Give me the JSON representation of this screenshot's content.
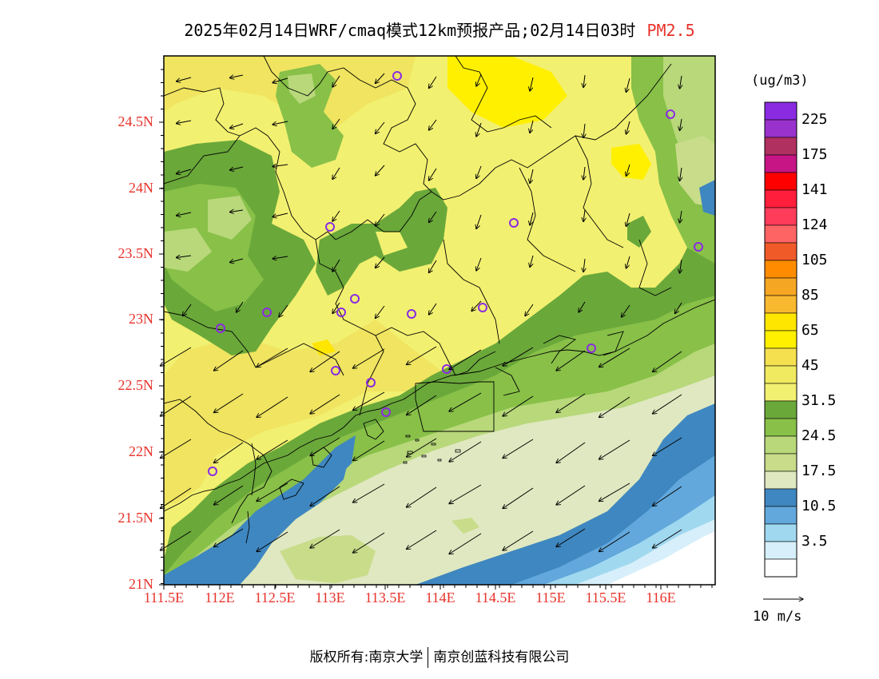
{
  "header": {
    "title": "2025年02月14日WRF/cmaq模式12km预报产品;02月14日03时",
    "product": "PM2.5"
  },
  "axes": {
    "lat_labels": [
      "24.5N",
      "24N",
      "23.5N",
      "23N",
      "22.5N",
      "22N",
      "21.5N",
      "21N"
    ],
    "lon_labels": [
      "111.5E",
      "112E",
      "112.5E",
      "113E",
      "113.5E",
      "114E",
      "114.5E",
      "115E",
      "115.5E",
      "116E"
    ]
  },
  "legend": {
    "unit": "(ug/m3)",
    "bins": [
      {
        "color": "#8a2be2"
      },
      {
        "color": "#9932cc"
      },
      {
        "color": "#b03060"
      },
      {
        "color": "#c71585"
      },
      {
        "color": "#ff0000"
      },
      {
        "color": "#ff1e3c"
      },
      {
        "color": "#ff3c5a"
      },
      {
        "color": "#ff6464"
      },
      {
        "color": "#f05a28"
      },
      {
        "color": "#ff8c00"
      },
      {
        "color": "#f5a623"
      },
      {
        "color": "#f8b830"
      },
      {
        "color": "#ffe600"
      },
      {
        "color": "#fff000"
      },
      {
        "color": "#f5e050"
      },
      {
        "color": "#f0ea60"
      },
      {
        "color": "#f2f070"
      },
      {
        "color": "#6aa83a"
      },
      {
        "color": "#88c048"
      },
      {
        "color": "#b8d87a"
      },
      {
        "color": "#c8dc8a"
      },
      {
        "color": "#dfe8c0"
      },
      {
        "color": "#3f87c0"
      },
      {
        "color": "#62a8dc"
      },
      {
        "color": "#a0d8f0"
      },
      {
        "color": "#d6effa"
      },
      {
        "color": "#ffffff"
      }
    ],
    "labels": [
      "225",
      "175",
      "141",
      "124",
      "105",
      "85",
      "65",
      "45",
      "31.5",
      "24.5",
      "17.5",
      "10.5",
      "3.5"
    ]
  },
  "wind_reference": {
    "label": "10 m/s"
  },
  "footer": {
    "copyright": "版权所有:南京大学",
    "company": "南京创蓝科技有限公司"
  }
}
